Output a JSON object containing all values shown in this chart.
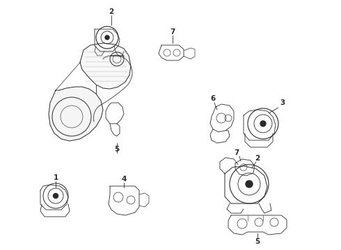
{
  "bg_color": "#ffffff",
  "line_color": "#2a2a2a",
  "figure_width": 4.9,
  "figure_height": 3.6,
  "dpi": 100
}
